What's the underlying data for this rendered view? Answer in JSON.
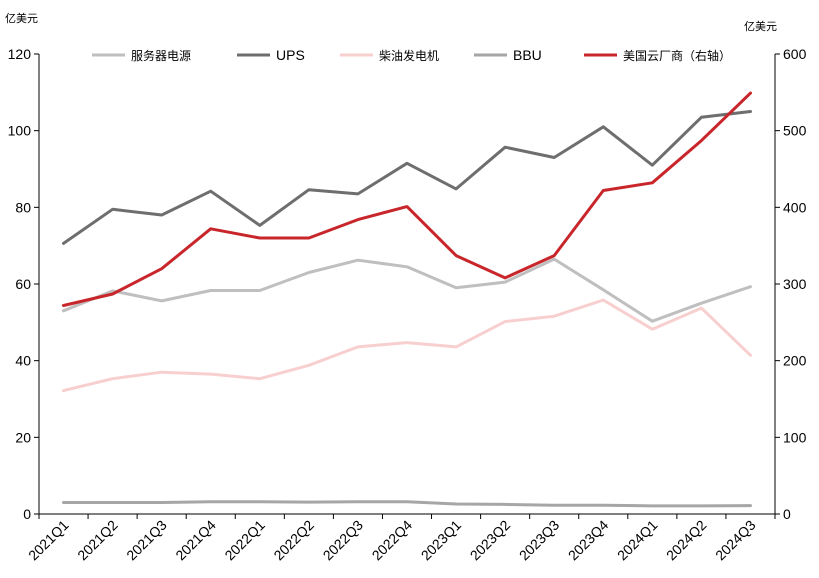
{
  "chart_data": {
    "type": "line",
    "left_unit": "亿美元",
    "right_unit": "亿美元",
    "categories": [
      "2021Q1",
      "2021Q2",
      "2021Q3",
      "2021Q4",
      "2022Q1",
      "2022Q2",
      "2022Q3",
      "2022Q4",
      "2023Q1",
      "2023Q2",
      "2023Q3",
      "2023Q4",
      "2024Q1",
      "2024Q2",
      "2024Q3"
    ],
    "ylim_left": [
      0,
      120
    ],
    "ylim_right": [
      0,
      600
    ],
    "left_ticks": [
      0,
      20,
      40,
      60,
      80,
      100,
      120
    ],
    "right_ticks": [
      0,
      100,
      200,
      300,
      400,
      500,
      600
    ],
    "legend_position": "top",
    "grid": false,
    "series": [
      {
        "name": "服务器电源",
        "axis": "left",
        "color": "#bfbfbf",
        "values": [
          53,
          58.2,
          55.6,
          58.3,
          58.3,
          63,
          66.2,
          64.5,
          59,
          60.5,
          66.5,
          58.5,
          50.3,
          55,
          59.3
        ]
      },
      {
        "name": "UPS",
        "axis": "left",
        "color": "#6e6e6e",
        "values": [
          70.6,
          79.5,
          78,
          84.2,
          75.3,
          84.6,
          83.5,
          91.5,
          84.8,
          95.7,
          93,
          101,
          91,
          103.5,
          105
        ]
      },
      {
        "name": "柴油发电机",
        "axis": "left",
        "color": "#f8cfcf",
        "values": [
          32.2,
          35.3,
          37,
          36.5,
          35.3,
          38.8,
          43.6,
          44.7,
          43.6,
          50.2,
          51.6,
          55.8,
          48.2,
          53.7,
          41.4
        ]
      },
      {
        "name": "BBU",
        "axis": "left",
        "color": "#a6a6a6",
        "values": [
          3,
          3,
          3,
          3.2,
          3.2,
          3.1,
          3.2,
          3.2,
          2.6,
          2.5,
          2.3,
          2.3,
          2.1,
          2.1,
          2.2
        ]
      },
      {
        "name": "美国云厂商（右轴）",
        "axis": "right",
        "color": "#c8262b",
        "values": [
          272,
          287,
          320,
          372,
          360,
          360,
          384,
          401,
          337,
          308,
          337,
          422,
          432,
          487,
          549
        ]
      }
    ]
  }
}
